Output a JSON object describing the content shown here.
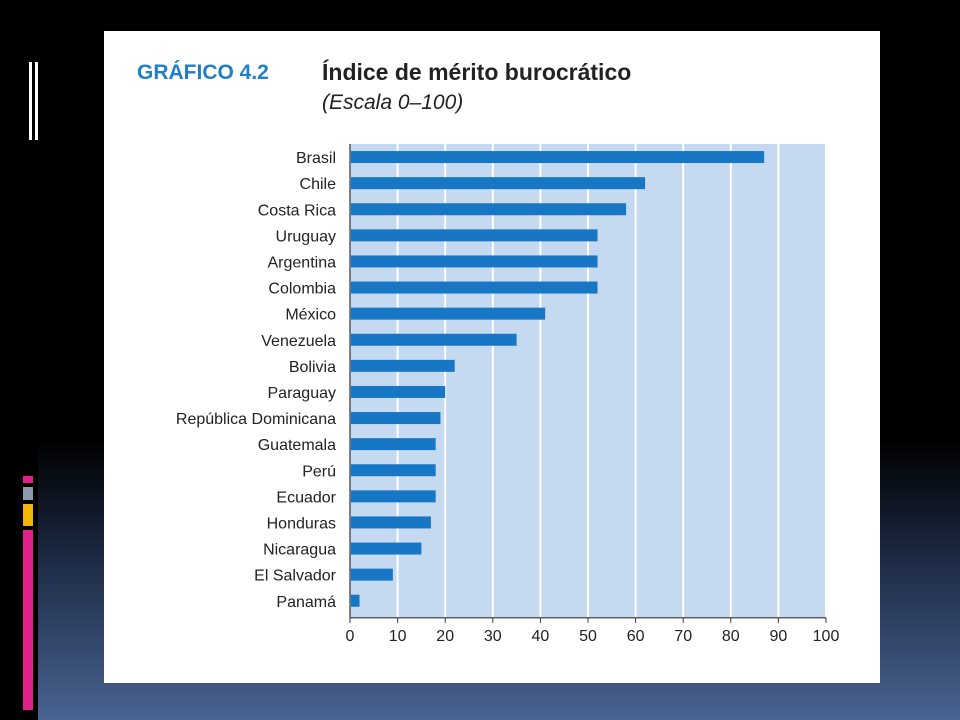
{
  "colors": {
    "bar": "#1877c4",
    "plot_background": "#c5d9f1",
    "gridline": "#ffffff",
    "header_accent": "#1f7fc7",
    "deco_magenta": "#e0218a",
    "deco_gold": "#f2b600",
    "deco_gray": "#8a9aa8"
  },
  "chart_data": {
    "type": "bar",
    "orientation": "horizontal",
    "label": "GRÁFICO 4.2",
    "title": "Índice de mérito burocrático",
    "subtitle": "(Escala 0–100)",
    "categories": [
      "Brasil",
      "Chile",
      "Costa Rica",
      "Uruguay",
      "Argentina",
      "Colombia",
      "México",
      "Venezuela",
      "Bolivia",
      "Paraguay",
      "República Dominicana",
      "Guatemala",
      "Perú",
      "Ecuador",
      "Honduras",
      "Nicaragua",
      "El Salvador",
      "Panamá"
    ],
    "values": [
      87,
      62,
      58,
      52,
      52,
      52,
      41,
      35,
      22,
      20,
      19,
      18,
      18,
      18,
      17,
      15,
      9,
      2
    ],
    "xticks": [
      "0",
      "10",
      "20",
      "30",
      "40",
      "50",
      "60",
      "70",
      "80",
      "90",
      "100"
    ],
    "xlim": [
      0,
      100
    ],
    "grid": "vertical",
    "legend": "none"
  }
}
